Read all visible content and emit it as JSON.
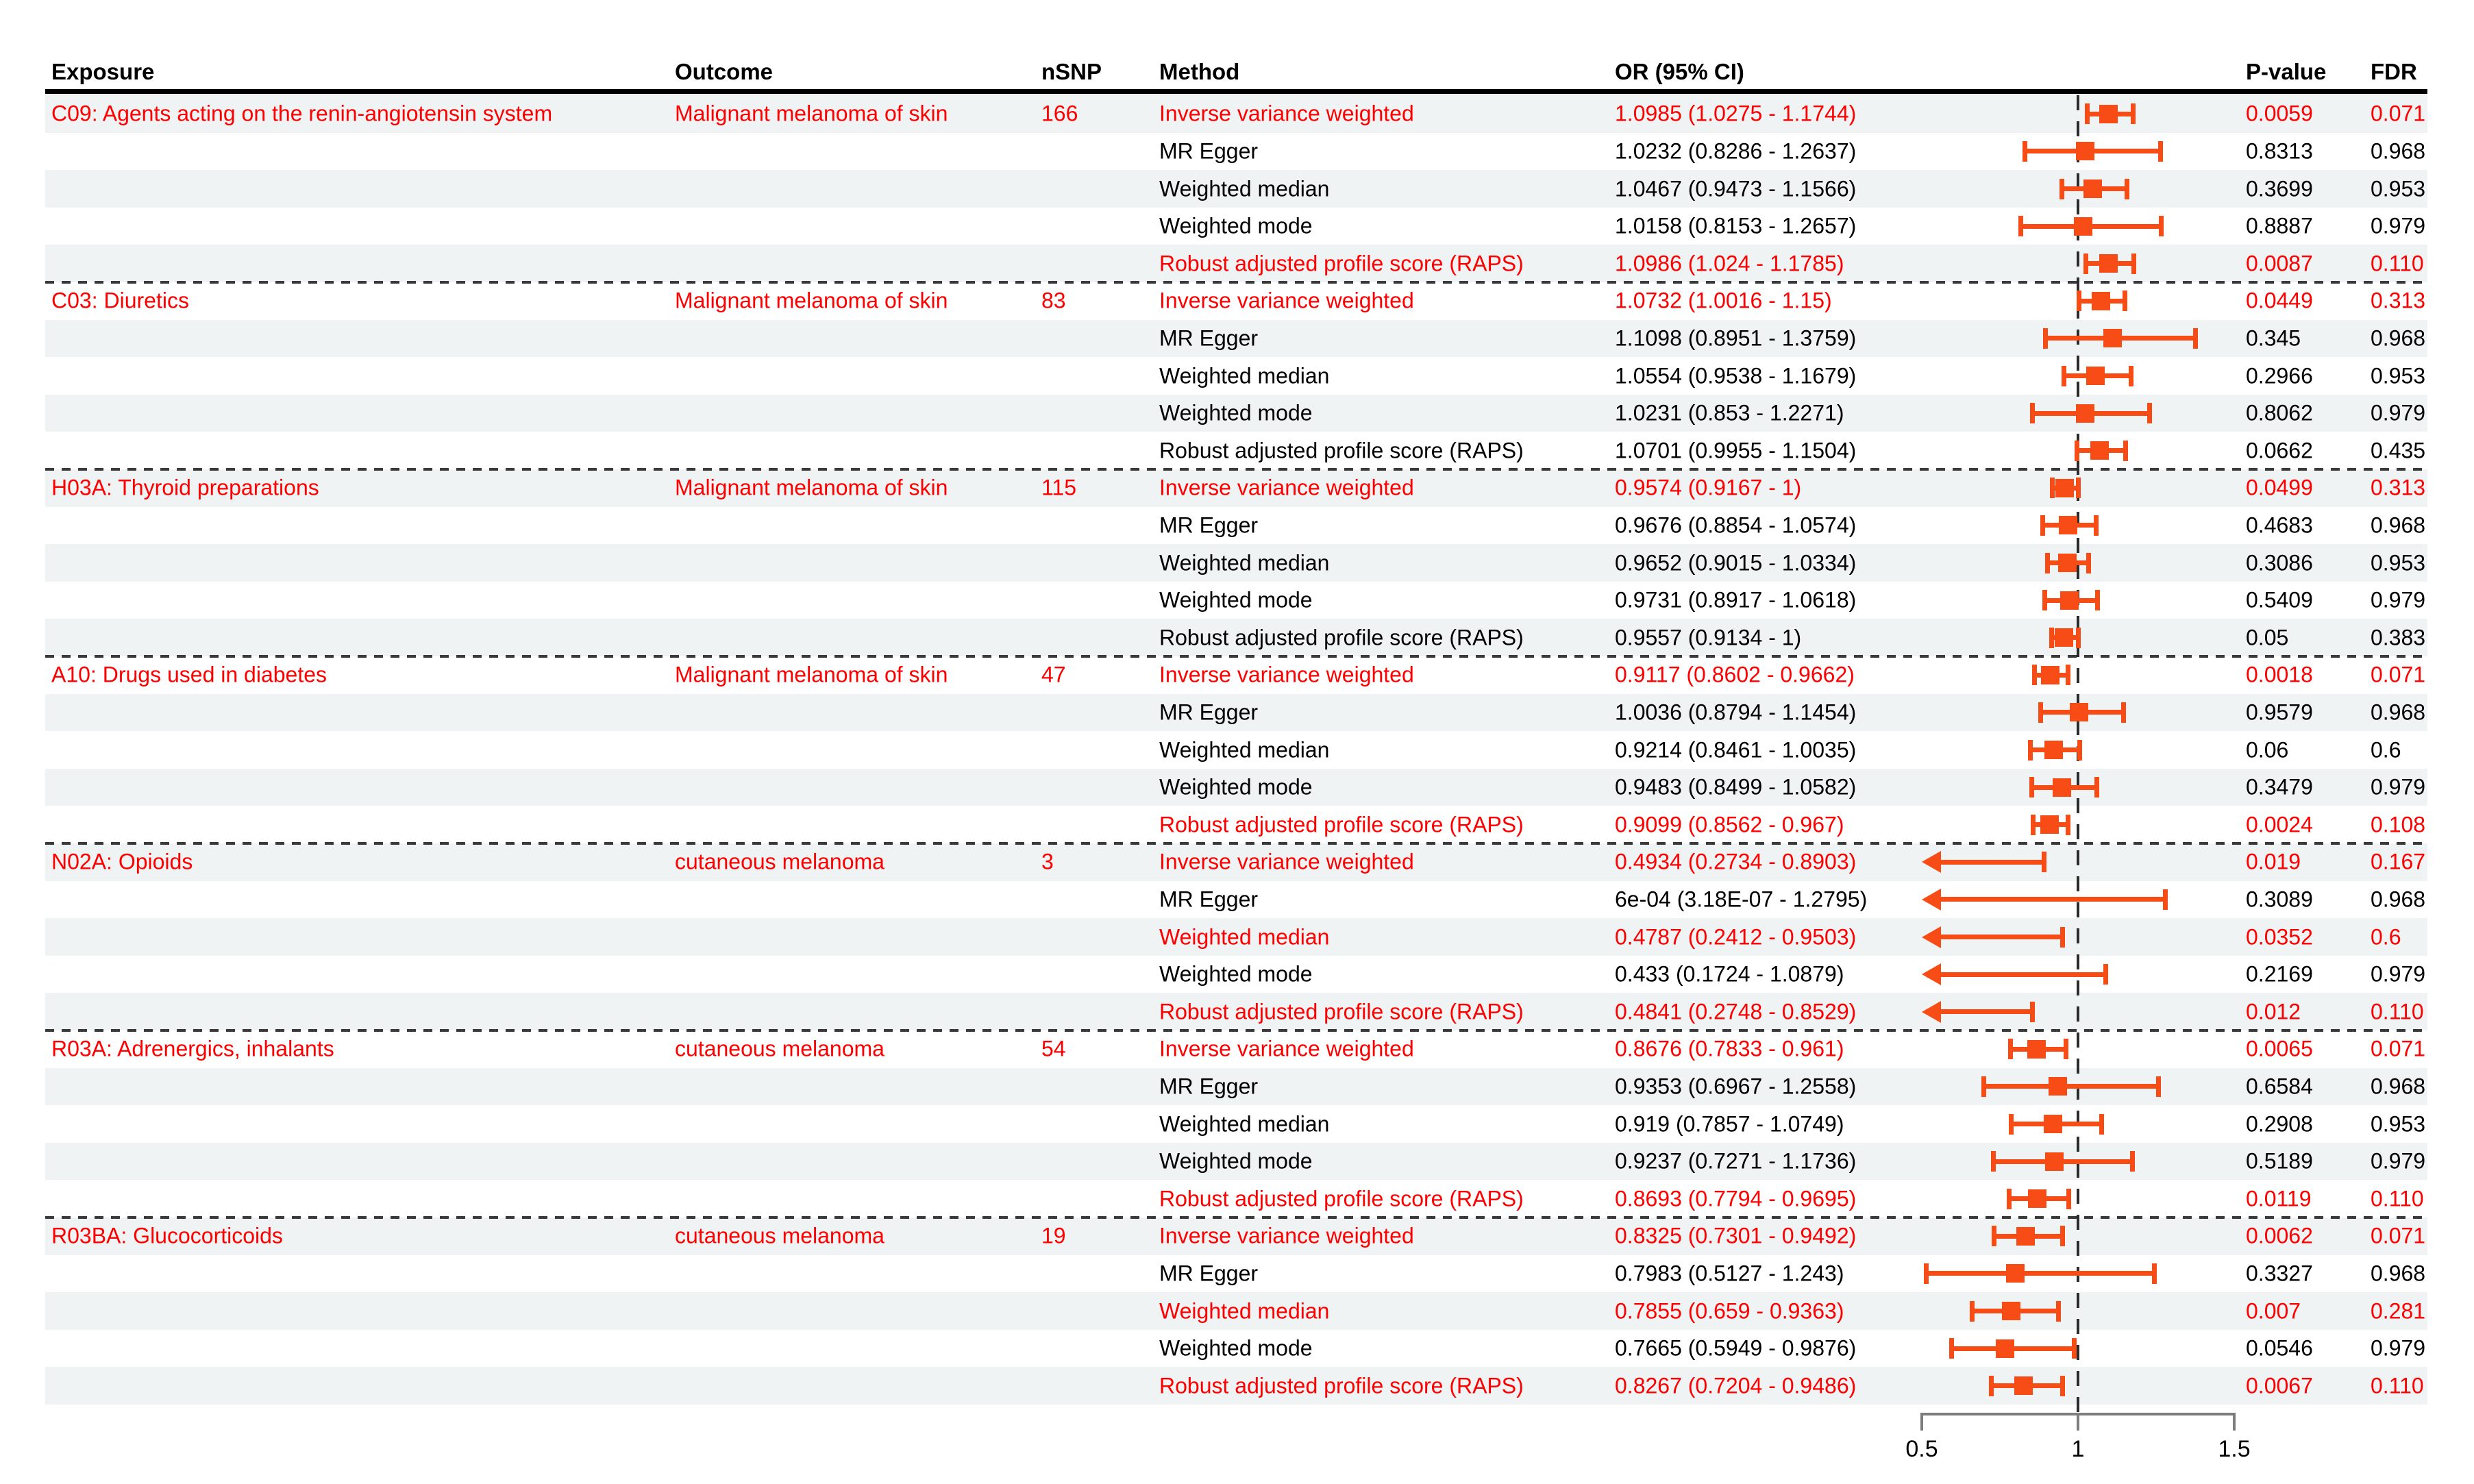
{
  "chart_data": {
    "type": "forest",
    "title": "Mendelian randomization forest plot: drug-class exposures vs melanoma outcomes",
    "legend_position": "none",
    "grid": false,
    "x_axis": {
      "ticks": [
        "0.5",
        "1",
        "1.5"
      ],
      "tick_values": [
        0.5,
        1.0,
        1.5
      ],
      "ref_line": 1.0,
      "clip_low": 0.5,
      "scale": "odds ratio"
    },
    "colors": {
      "marker": "#f84c16",
      "significant_text": "#fe0000",
      "normal_text": "#000000",
      "stripe": "#f0f3f3",
      "axis": "#7d7d7d"
    },
    "columns": {
      "exposure": "Exposure",
      "outcome": "Outcome",
      "nsnp": "nSNP",
      "method": "Method",
      "or": "OR (95% CI)",
      "p": "P-value",
      "fdr": "FDR"
    },
    "groups": [
      {
        "exposure": "C09: Agents acting on the renin-angiotensin system",
        "outcome": "Malignant melanoma of skin",
        "nsnp": "166",
        "rows": [
          {
            "method": "Inverse variance weighted",
            "or": 1.0985,
            "lo": 1.0275,
            "hi": 1.1744,
            "or_text": "1.0985 (1.0275 - 1.1744)",
            "p": "0.0059",
            "fdr": "0.071",
            "sig": true
          },
          {
            "method": "MR Egger",
            "or": 1.0232,
            "lo": 0.8286,
            "hi": 1.2637,
            "or_text": "1.0232 (0.8286 - 1.2637)",
            "p": "0.8313",
            "fdr": "0.968",
            "sig": false
          },
          {
            "method": "Weighted median",
            "or": 1.0467,
            "lo": 0.9473,
            "hi": 1.1566,
            "or_text": "1.0467 (0.9473 - 1.1566)",
            "p": "0.3699",
            "fdr": "0.953",
            "sig": false
          },
          {
            "method": "Weighted mode",
            "or": 1.0158,
            "lo": 0.8153,
            "hi": 1.2657,
            "or_text": "1.0158 (0.8153 - 1.2657)",
            "p": "0.8887",
            "fdr": "0.979",
            "sig": false
          },
          {
            "method": "Robust adjusted profile score (RAPS)",
            "or": 1.0986,
            "lo": 1.024,
            "hi": 1.1785,
            "or_text": "1.0986 (1.024 - 1.1785)",
            "p": "0.0087",
            "fdr": "0.110",
            "sig": true
          }
        ]
      },
      {
        "exposure": "C03: Diuretics",
        "outcome": "Malignant melanoma of skin",
        "nsnp": "83",
        "rows": [
          {
            "method": "Inverse variance weighted",
            "or": 1.0732,
            "lo": 1.0016,
            "hi": 1.15,
            "or_text": "1.0732 (1.0016 - 1.15)",
            "p": "0.0449",
            "fdr": "0.313",
            "sig": true
          },
          {
            "method": "MR Egger",
            "or": 1.1098,
            "lo": 0.8951,
            "hi": 1.3759,
            "or_text": "1.1098 (0.8951 - 1.3759)",
            "p": "0.345",
            "fdr": "0.968",
            "sig": false
          },
          {
            "method": "Weighted median",
            "or": 1.0554,
            "lo": 0.9538,
            "hi": 1.1679,
            "or_text": "1.0554 (0.9538 - 1.1679)",
            "p": "0.2966",
            "fdr": "0.953",
            "sig": false
          },
          {
            "method": "Weighted mode",
            "or": 1.0231,
            "lo": 0.853,
            "hi": 1.2271,
            "or_text": "1.0231 (0.853 - 1.2271)",
            "p": "0.8062",
            "fdr": "0.979",
            "sig": false
          },
          {
            "method": "Robust adjusted profile score (RAPS)",
            "or": 1.0701,
            "lo": 0.9955,
            "hi": 1.1504,
            "or_text": "1.0701 (0.9955 - 1.1504)",
            "p": "0.0662",
            "fdr": "0.435",
            "sig": false
          }
        ]
      },
      {
        "exposure": "H03A: Thyroid preparations",
        "outcome": "Malignant melanoma of skin",
        "nsnp": "115",
        "rows": [
          {
            "method": "Inverse variance weighted",
            "or": 0.9574,
            "lo": 0.9167,
            "hi": 1.0,
            "or_text": "0.9574 (0.9167 - 1)",
            "p": "0.0499",
            "fdr": "0.313",
            "sig": true
          },
          {
            "method": "MR Egger",
            "or": 0.9676,
            "lo": 0.8854,
            "hi": 1.0574,
            "or_text": "0.9676 (0.8854 - 1.0574)",
            "p": "0.4683",
            "fdr": "0.968",
            "sig": false
          },
          {
            "method": "Weighted median",
            "or": 0.9652,
            "lo": 0.9015,
            "hi": 1.0334,
            "or_text": "0.9652 (0.9015 - 1.0334)",
            "p": "0.3086",
            "fdr": "0.953",
            "sig": false
          },
          {
            "method": "Weighted mode",
            "or": 0.9731,
            "lo": 0.8917,
            "hi": 1.0618,
            "or_text": "0.9731 (0.8917 - 1.0618)",
            "p": "0.5409",
            "fdr": "0.979",
            "sig": false
          },
          {
            "method": "Robust adjusted profile score (RAPS)",
            "or": 0.9557,
            "lo": 0.9134,
            "hi": 1.0,
            "or_text": "0.9557 (0.9134 - 1)",
            "p": "0.05",
            "fdr": "0.383",
            "sig": false
          }
        ]
      },
      {
        "exposure": "A10: Drugs used in diabetes",
        "outcome": "Malignant melanoma of skin",
        "nsnp": "47",
        "rows": [
          {
            "method": "Inverse variance weighted",
            "or": 0.9117,
            "lo": 0.8602,
            "hi": 0.9662,
            "or_text": "0.9117 (0.8602 - 0.9662)",
            "p": "0.0018",
            "fdr": "0.071",
            "sig": true
          },
          {
            "method": "MR Egger",
            "or": 1.0036,
            "lo": 0.8794,
            "hi": 1.1454,
            "or_text": "1.0036 (0.8794 - 1.1454)",
            "p": "0.9579",
            "fdr": "0.968",
            "sig": false
          },
          {
            "method": "Weighted median",
            "or": 0.9214,
            "lo": 0.8461,
            "hi": 1.0035,
            "or_text": "0.9214 (0.8461 - 1.0035)",
            "p": "0.06",
            "fdr": "0.6",
            "sig": false
          },
          {
            "method": "Weighted mode",
            "or": 0.9483,
            "lo": 0.8499,
            "hi": 1.0582,
            "or_text": "0.9483 (0.8499 - 1.0582)",
            "p": "0.3479",
            "fdr": "0.979",
            "sig": false
          },
          {
            "method": "Robust adjusted profile score (RAPS)",
            "or": 0.9099,
            "lo": 0.8562,
            "hi": 0.967,
            "or_text": "0.9099 (0.8562 - 0.967)",
            "p": "0.0024",
            "fdr": "0.108",
            "sig": true
          }
        ]
      },
      {
        "exposure": "N02A: Opioids",
        "outcome": "cutaneous melanoma",
        "nsnp": "3",
        "rows": [
          {
            "method": "Inverse variance weighted",
            "or": 0.4934,
            "lo": 0.2734,
            "hi": 0.8903,
            "or_text": "0.4934 (0.2734 - 0.8903)",
            "p": "0.019",
            "fdr": "0.167",
            "sig": true
          },
          {
            "method": "MR Egger",
            "or": 0.0006,
            "lo": 3.2e-07,
            "hi": 1.2795,
            "or_text": "6e-04 (3.18E-07 - 1.2795)",
            "p": "0.3089",
            "fdr": "0.968",
            "sig": false
          },
          {
            "method": "Weighted median",
            "or": 0.4787,
            "lo": 0.2412,
            "hi": 0.9503,
            "or_text": "0.4787 (0.2412 - 0.9503)",
            "p": "0.0352",
            "fdr": "0.6",
            "sig": true
          },
          {
            "method": "Weighted mode",
            "or": 0.433,
            "lo": 0.1724,
            "hi": 1.0879,
            "or_text": "0.433 (0.1724 - 1.0879)",
            "p": "0.2169",
            "fdr": "0.979",
            "sig": false
          },
          {
            "method": "Robust adjusted profile score (RAPS)",
            "or": 0.4841,
            "lo": 0.2748,
            "hi": 0.8529,
            "or_text": "0.4841 (0.2748 - 0.8529)",
            "p": "0.012",
            "fdr": "0.110",
            "sig": true
          }
        ]
      },
      {
        "exposure": "R03A: Adrenergics, inhalants",
        "outcome": "cutaneous melanoma",
        "nsnp": "54",
        "rows": [
          {
            "method": "Inverse variance weighted",
            "or": 0.8676,
            "lo": 0.7833,
            "hi": 0.961,
            "or_text": "0.8676 (0.7833 - 0.961)",
            "p": "0.0065",
            "fdr": "0.071",
            "sig": true
          },
          {
            "method": "MR Egger",
            "or": 0.9353,
            "lo": 0.6967,
            "hi": 1.2558,
            "or_text": "0.9353 (0.6967 - 1.2558)",
            "p": "0.6584",
            "fdr": "0.968",
            "sig": false
          },
          {
            "method": "Weighted median",
            "or": 0.919,
            "lo": 0.7857,
            "hi": 1.0749,
            "or_text": "0.919 (0.7857 - 1.0749)",
            "p": "0.2908",
            "fdr": "0.953",
            "sig": false
          },
          {
            "method": "Weighted mode",
            "or": 0.9237,
            "lo": 0.7271,
            "hi": 1.1736,
            "or_text": "0.9237 (0.7271 - 1.1736)",
            "p": "0.5189",
            "fdr": "0.979",
            "sig": false
          },
          {
            "method": "Robust adjusted profile score (RAPS)",
            "or": 0.8693,
            "lo": 0.7794,
            "hi": 0.9695,
            "or_text": "0.8693 (0.7794 - 0.9695)",
            "p": "0.0119",
            "fdr": "0.110",
            "sig": true
          }
        ]
      },
      {
        "exposure": "R03BA: Glucocorticoids",
        "outcome": "cutaneous melanoma",
        "nsnp": "19",
        "rows": [
          {
            "method": "Inverse variance weighted",
            "or": 0.8325,
            "lo": 0.7301,
            "hi": 0.9492,
            "or_text": "0.8325 (0.7301 - 0.9492)",
            "p": "0.0062",
            "fdr": "0.071",
            "sig": true
          },
          {
            "method": "MR Egger",
            "or": 0.7983,
            "lo": 0.5127,
            "hi": 1.243,
            "or_text": "0.7983 (0.5127 - 1.243)",
            "p": "0.3327",
            "fdr": "0.968",
            "sig": false
          },
          {
            "method": "Weighted median",
            "or": 0.7855,
            "lo": 0.659,
            "hi": 0.9363,
            "or_text": "0.7855 (0.659 - 0.9363)",
            "p": "0.007",
            "fdr": "0.281",
            "sig": true
          },
          {
            "method": "Weighted mode",
            "or": 0.7665,
            "lo": 0.5949,
            "hi": 0.9876,
            "or_text": "0.7665 (0.5949 - 0.9876)",
            "p": "0.0546",
            "fdr": "0.979",
            "sig": false
          },
          {
            "method": "Robust adjusted profile score (RAPS)",
            "or": 0.8267,
            "lo": 0.7204,
            "hi": 0.9486,
            "or_text": "0.8267 (0.7204 - 0.9486)",
            "p": "0.0067",
            "fdr": "0.110",
            "sig": true
          }
        ]
      }
    ]
  }
}
